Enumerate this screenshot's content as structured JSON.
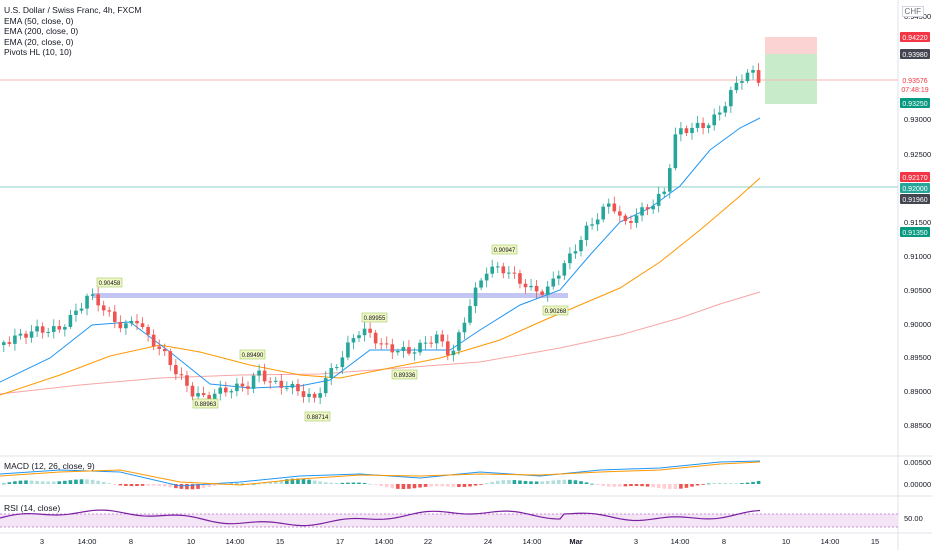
{
  "symbol_title": "U.S. Dollar / Swiss Franc, 4h, FXCM",
  "currency": "CHF",
  "indicators": [
    "EMA (50, close, 0)",
    "EMA (200, close, 0)",
    "EMA (20, close, 0)",
    "Pivots HL (10, 10)"
  ],
  "macd_label": "MACD (12, 26, close, 9)",
  "rsi_label": "RSI (14, close)",
  "colors": {
    "up": "#26a69a",
    "down": "#ef5350",
    "ema20": "#2196f3",
    "ema50": "#ff9800",
    "ema200": "#f8a5a5",
    "rsi": "#7b1fa2",
    "profit": "#c8ecc9",
    "loss": "#fbd3d3"
  },
  "price_axis": [
    "0.94500",
    "0.93000",
    "0.92500",
    "0.91500",
    "0.91000",
    "0.90500",
    "0.90000",
    "0.89500",
    "0.89000",
    "0.88500"
  ],
  "price_badges": [
    {
      "text": "0.94220",
      "bg": "#f23645"
    },
    {
      "text": "0.93980",
      "bg": "#434651"
    },
    {
      "text": "0.93576",
      "bg": "#ffffff",
      "fg": "#f23645"
    },
    {
      "text": "07:48:19",
      "bg": "#ffffff",
      "fg": "#f23645"
    },
    {
      "text": "0.93250",
      "bg": "#089981"
    },
    {
      "text": "0.92170",
      "bg": "#f23645"
    },
    {
      "text": "0.92000",
      "bg": "#26a69a"
    },
    {
      "text": "0.91960",
      "bg": "#434651"
    },
    {
      "text": "0.91350",
      "bg": "#089981"
    }
  ],
  "macd_axis": [
    "0.00500",
    "0.00000"
  ],
  "rsi_axis": [
    "50.00"
  ],
  "time_axis": [
    "3",
    "14:00",
    "8",
    "10",
    "14:00",
    "15",
    "17",
    "14:00",
    "22",
    "24",
    "14:00",
    "Mar",
    "3",
    "14:00",
    "8",
    "10",
    "14:00",
    "15"
  ],
  "pivots": [
    {
      "text": "0.90458"
    },
    {
      "text": "0.89490"
    },
    {
      "text": "0.88963"
    },
    {
      "text": "0.88714"
    },
    {
      "text": "0.89955"
    },
    {
      "text": "0.89336"
    },
    {
      "text": "0.90947"
    },
    {
      "text": "0.90268"
    }
  ]
}
